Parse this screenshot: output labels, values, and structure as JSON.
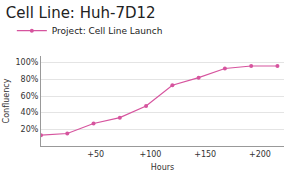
{
  "chart_data": {
    "type": "line",
    "title": "Cell Line: Huh-7D12",
    "x_label": "Hours",
    "y_label": "Confluency",
    "x": [
      0,
      24,
      48,
      72,
      96,
      120,
      144,
      168,
      192,
      216
    ],
    "series": [
      {
        "name": "Project: Cell Line Launch",
        "color": "#d6549e",
        "values": [
          13,
          15,
          27,
          34,
          48,
          73,
          82,
          93,
          96,
          96
        ]
      }
    ],
    "xlim": [
      0,
      222
    ],
    "xticks": [
      {
        "value": 50,
        "label": "+50"
      },
      {
        "value": 100,
        "label": "+100"
      },
      {
        "value": 150,
        "label": "+150"
      },
      {
        "value": 200,
        "label": "+200"
      }
    ],
    "ylim": [
      0,
      108
    ],
    "yticks": [
      {
        "value": 20,
        "label": "20%"
      },
      {
        "value": 40,
        "label": "40%"
      },
      {
        "value": 60,
        "label": "60%"
      },
      {
        "value": 80,
        "label": "80%"
      },
      {
        "value": 100,
        "label": "100%"
      }
    ],
    "grid": true,
    "legend": "top-left",
    "marker": "circle"
  }
}
